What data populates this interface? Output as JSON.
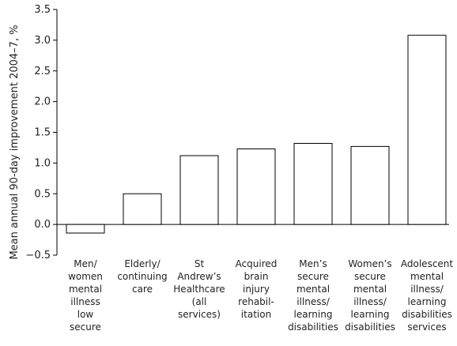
{
  "chart_data": {
    "type": "bar",
    "title": "",
    "xlabel": "",
    "ylabel": "Mean annual 90-day improvement 2004–7, %",
    "ylim": [
      -0.5,
      3.5
    ],
    "yticks": [
      "−0.5",
      "0.0",
      "0.5",
      "1.0",
      "1.5",
      "2.0",
      "2.5",
      "3.0",
      "3.5"
    ],
    "categories": [
      "Men/ women mental illness low secure",
      "Elderly/ continuing care",
      "St Andrew's Healthcare (all services)",
      "Acquired brain injury rehabil- itation",
      "Men's secure mental illness/ learning disabilities",
      "Women's secure mental illness/ learning disabilities",
      "Adolescent mental illness/ learning disabilities services"
    ],
    "category_lines": [
      [
        "Men/",
        "women",
        "mental",
        "illness",
        "low",
        "secure"
      ],
      [
        "Elderly/",
        "continuing",
        "care"
      ],
      [
        "St",
        "Andrew’s",
        "Healthcare",
        "(all",
        "services)"
      ],
      [
        "Acquired",
        "brain",
        "injury",
        "rehabil-",
        "itation"
      ],
      [
        "Men’s",
        "secure",
        "mental",
        "illness/",
        "learning",
        "disabilities"
      ],
      [
        "Women’s",
        "secure",
        "mental",
        "illness/",
        "learning",
        "disabilities"
      ],
      [
        "Adolescent",
        "mental",
        "illness/",
        "learning",
        "disabilities",
        "services"
      ]
    ],
    "values": [
      -0.14,
      0.5,
      1.12,
      1.23,
      1.32,
      1.27,
      3.08
    ],
    "bar_color": "#ffffff",
    "grid": false
  }
}
